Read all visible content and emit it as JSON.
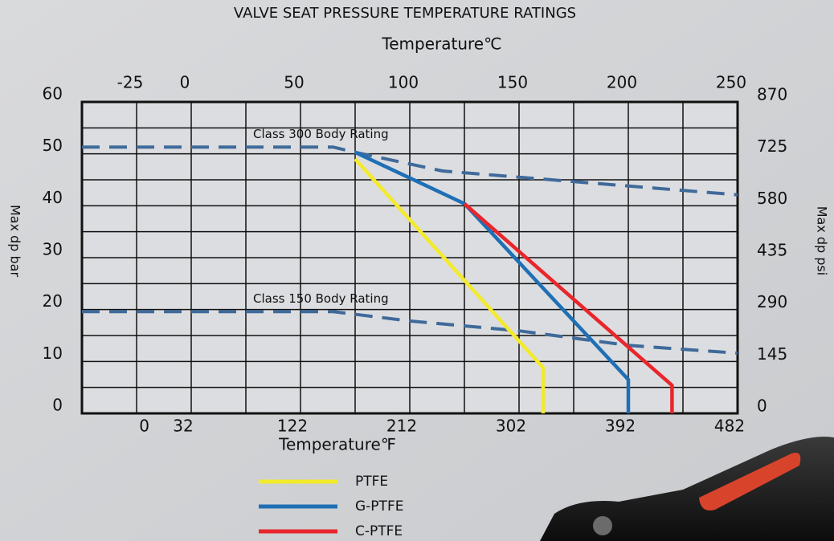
{
  "chart_data": {
    "type": "line",
    "title": "VALVE SEAT PRESSURE TEMPERATURE RATINGS",
    "x_label": "Temperature℃",
    "x2_label": "Temperature℉",
    "y_label": "Max dp bar",
    "y2_label": "Max dp psi",
    "xlim": [
      -50,
      250
    ],
    "xticks": [
      -25,
      0,
      50,
      100,
      150,
      200,
      250
    ],
    "minor_xticks": [
      -50,
      -25,
      0,
      25,
      50,
      75,
      100,
      125,
      150,
      175,
      200,
      225,
      250
    ],
    "x2lim": [
      -58,
      482
    ],
    "x2ticks": [
      0,
      32,
      122,
      212,
      302,
      392,
      482
    ],
    "ylim": [
      0,
      60
    ],
    "yticks": [
      0,
      10,
      20,
      30,
      40,
      50,
      60
    ],
    "minor_yticks": [
      0,
      5,
      10,
      15,
      20,
      25,
      30,
      35,
      40,
      45,
      50,
      55,
      60
    ],
    "y2lim": [
      0,
      870
    ],
    "y2ticks": [
      0,
      145,
      290,
      435,
      580,
      725,
      870
    ],
    "grid": true,
    "series": [
      {
        "name": "Class 300 Body Rating",
        "style": "dashed",
        "color": "#3f6a9a",
        "x": [
          -50,
          65,
          75,
          115,
          250
        ],
        "values": [
          51.3,
          51.3,
          50.3,
          46.7,
          42.1
        ]
      },
      {
        "name": "Class 150 Body Rating",
        "style": "dashed",
        "color": "#3f6a9a",
        "x": [
          -50,
          65,
          100,
          150,
          200,
          250
        ],
        "values": [
          19.6,
          19.6,
          17.8,
          15.9,
          13.1,
          11.6
        ]
      },
      {
        "name": "PTFE",
        "style": "solid",
        "color": "#f3ea2c",
        "x": [
          75,
          161,
          161
        ],
        "values": [
          49,
          8.8,
          0
        ]
      },
      {
        "name": "G-PTFE",
        "style": "solid",
        "color": "#1f6fb5",
        "x": [
          75,
          125,
          200,
          200
        ],
        "values": [
          50.3,
          40.4,
          6.5,
          0
        ]
      },
      {
        "name": "C-PTFE",
        "style": "solid",
        "color": "#e8262b",
        "x": [
          125,
          220,
          220
        ],
        "values": [
          40.4,
          5.4,
          0
        ]
      }
    ]
  }
}
